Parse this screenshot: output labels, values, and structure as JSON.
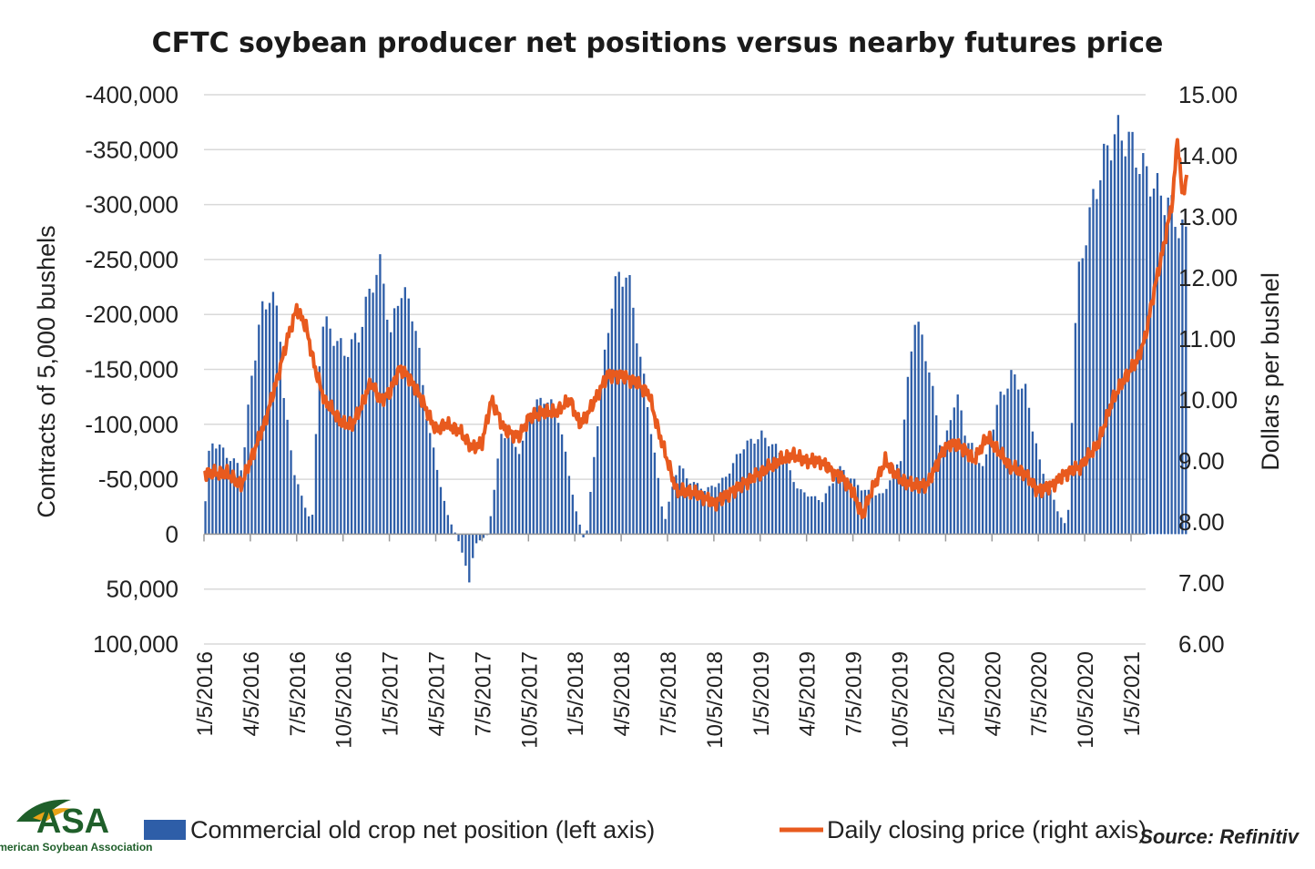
{
  "chart_data": {
    "type": "bar+line",
    "title": "CFTC soybean producer net positions versus nearby futures price",
    "ylabel_left": "Contracts of 5,000 bushels",
    "ylabel_right": "Dollars per bushel",
    "left_ticks": [
      "-400,000",
      "-350,000",
      "-300,000",
      "-250,000",
      "-200,000",
      "-150,000",
      "-100,000",
      "-50,000",
      "0",
      "50,000",
      "100,000"
    ],
    "right_ticks": [
      "15.00",
      "14.00",
      "13.00",
      "12.00",
      "11.00",
      "10.00",
      "9.00",
      "8.00",
      "7.00",
      "6.00"
    ],
    "left_ylim": [
      100000,
      -400000
    ],
    "right_ylim": [
      6,
      15
    ],
    "x_tick_labels": [
      "1/5/2016",
      "4/5/2016",
      "7/5/2016",
      "10/5/2016",
      "1/5/2017",
      "4/5/2017",
      "7/5/2017",
      "10/5/2017",
      "1/5/2018",
      "4/5/2018",
      "7/5/2018",
      "10/5/2018",
      "1/5/2019",
      "4/5/2019",
      "7/5/2019",
      "10/5/2019",
      "1/5/2020",
      "4/5/2020",
      "7/5/2020",
      "10/5/2020",
      "1/5/2021"
    ],
    "x_range_quarters": [
      0,
      21.2
    ],
    "bar_series": {
      "name": "Commercial old crop net position (left axis)",
      "color": "#2e5ea8",
      "keypoints_q_value": [
        [
          0,
          -30000
        ],
        [
          0.1,
          -85000
        ],
        [
          0.3,
          -80000
        ],
        [
          0.5,
          -70000
        ],
        [
          0.8,
          -60000
        ],
        [
          1.0,
          -145000
        ],
        [
          1.2,
          -200000
        ],
        [
          1.4,
          -220000
        ],
        [
          1.6,
          -195000
        ],
        [
          1.7,
          -120000
        ],
        [
          1.9,
          -60000
        ],
        [
          2.1,
          -30000
        ],
        [
          2.3,
          -10000
        ],
        [
          2.5,
          -195000
        ],
        [
          2.7,
          -185000
        ],
        [
          3.0,
          -165000
        ],
        [
          3.3,
          -180000
        ],
        [
          3.6,
          -230000
        ],
        [
          3.8,
          -245000
        ],
        [
          4.0,
          -180000
        ],
        [
          4.2,
          -225000
        ],
        [
          4.5,
          -200000
        ],
        [
          4.8,
          -100000
        ],
        [
          5.2,
          -20000
        ],
        [
          5.5,
          10000
        ],
        [
          5.7,
          45000
        ],
        [
          5.8,
          10000
        ],
        [
          6.1,
          0
        ],
        [
          6.4,
          -95000
        ],
        [
          6.8,
          -75000
        ],
        [
          7.0,
          -110000
        ],
        [
          7.3,
          -125000
        ],
        [
          7.6,
          -110000
        ],
        [
          8.0,
          -20000
        ],
        [
          8.2,
          10000
        ],
        [
          8.5,
          -120000
        ],
        [
          8.8,
          -225000
        ],
        [
          9.1,
          -240000
        ],
        [
          9.3,
          -185000
        ],
        [
          9.6,
          -100000
        ],
        [
          9.9,
          -10000
        ],
        [
          10.2,
          -65000
        ],
        [
          10.4,
          -50000
        ],
        [
          10.8,
          -40000
        ],
        [
          11.2,
          -50000
        ],
        [
          11.6,
          -80000
        ],
        [
          12.0,
          -90000
        ],
        [
          12.4,
          -75000
        ],
        [
          12.8,
          -40000
        ],
        [
          13.3,
          -30000
        ],
        [
          13.7,
          -60000
        ],
        [
          14.2,
          -40000
        ],
        [
          14.6,
          -35000
        ],
        [
          15.0,
          -70000
        ],
        [
          15.3,
          -200000
        ],
        [
          15.6,
          -155000
        ],
        [
          15.9,
          -70000
        ],
        [
          16.2,
          -130000
        ],
        [
          16.4,
          -90000
        ],
        [
          16.8,
          -60000
        ],
        [
          17.1,
          -120000
        ],
        [
          17.4,
          -145000
        ],
        [
          17.7,
          -130000
        ],
        [
          18.0,
          -65000
        ],
        [
          18.4,
          -20000
        ],
        [
          18.6,
          -5000
        ],
        [
          18.8,
          -225000
        ],
        [
          19.0,
          -275000
        ],
        [
          19.3,
          -330000
        ],
        [
          19.6,
          -365000
        ],
        [
          19.9,
          -360000
        ],
        [
          20.2,
          -335000
        ],
        [
          20.5,
          -315000
        ],
        [
          20.8,
          -300000
        ],
        [
          21.0,
          -280000
        ],
        [
          21.2,
          -270000
        ]
      ]
    },
    "line_series": {
      "name": "Daily closing price (right axis)",
      "color": "#e85a1e",
      "keypoints_q_value": [
        [
          0,
          8.8
        ],
        [
          0.5,
          8.8
        ],
        [
          0.8,
          8.6
        ],
        [
          1.0,
          9.0
        ],
        [
          1.3,
          9.6
        ],
        [
          1.6,
          10.4
        ],
        [
          1.8,
          11.0
        ],
        [
          2.0,
          11.5
        ],
        [
          2.2,
          11.2
        ],
        [
          2.4,
          10.5
        ],
        [
          2.6,
          10.0
        ],
        [
          2.8,
          9.8
        ],
        [
          3.0,
          9.6
        ],
        [
          3.2,
          9.6
        ],
        [
          3.4,
          9.9
        ],
        [
          3.6,
          10.3
        ],
        [
          3.8,
          10.0
        ],
        [
          4.0,
          10.1
        ],
        [
          4.2,
          10.5
        ],
        [
          4.4,
          10.4
        ],
        [
          4.7,
          10.0
        ],
        [
          5.0,
          9.5
        ],
        [
          5.2,
          9.6
        ],
        [
          5.5,
          9.5
        ],
        [
          5.8,
          9.2
        ],
        [
          6.0,
          9.3
        ],
        [
          6.2,
          10.0
        ],
        [
          6.5,
          9.5
        ],
        [
          6.8,
          9.4
        ],
        [
          7.0,
          9.7
        ],
        [
          7.3,
          9.8
        ],
        [
          7.6,
          9.8
        ],
        [
          7.9,
          10.0
        ],
        [
          8.1,
          9.6
        ],
        [
          8.3,
          9.8
        ],
        [
          8.5,
          10.1
        ],
        [
          8.7,
          10.4
        ],
        [
          9.0,
          10.4
        ],
        [
          9.3,
          10.3
        ],
        [
          9.6,
          10.1
        ],
        [
          9.8,
          9.5
        ],
        [
          10.0,
          9.0
        ],
        [
          10.2,
          8.5
        ],
        [
          10.5,
          8.5
        ],
        [
          10.8,
          8.4
        ],
        [
          11.0,
          8.3
        ],
        [
          11.4,
          8.5
        ],
        [
          11.8,
          8.7
        ],
        [
          12.0,
          8.8
        ],
        [
          12.4,
          9.0
        ],
        [
          12.7,
          9.1
        ],
        [
          13.0,
          9.0
        ],
        [
          13.3,
          9.0
        ],
        [
          13.6,
          8.8
        ],
        [
          13.8,
          8.7
        ],
        [
          14.0,
          8.5
        ],
        [
          14.2,
          8.1
        ],
        [
          14.4,
          8.5
        ],
        [
          14.7,
          9.0
        ],
        [
          15.0,
          8.7
        ],
        [
          15.3,
          8.6
        ],
        [
          15.6,
          8.6
        ],
        [
          15.9,
          9.1
        ],
        [
          16.1,
          9.3
        ],
        [
          16.4,
          9.2
        ],
        [
          16.6,
          9.0
        ],
        [
          16.9,
          9.4
        ],
        [
          17.1,
          9.2
        ],
        [
          17.4,
          8.9
        ],
        [
          17.7,
          8.8
        ],
        [
          18.0,
          8.5
        ],
        [
          18.3,
          8.6
        ],
        [
          18.6,
          8.8
        ],
        [
          18.9,
          8.9
        ],
        [
          19.1,
          9.1
        ],
        [
          19.3,
          9.3
        ],
        [
          19.6,
          10.0
        ],
        [
          19.9,
          10.4
        ],
        [
          20.1,
          10.6
        ],
        [
          20.3,
          11.0
        ],
        [
          20.5,
          11.8
        ],
        [
          20.7,
          12.5
        ],
        [
          20.9,
          13.3
        ],
        [
          21.0,
          14.3
        ],
        [
          21.1,
          13.4
        ],
        [
          21.2,
          13.6
        ]
      ]
    },
    "legend": {
      "bar_label": "Commercial old crop net position (left axis)",
      "line_label": "Daily closing price (right axis)"
    },
    "source": "Source: Refinitiv"
  },
  "logo": {
    "name": "ASA",
    "subtitle": "American Soybean Association"
  },
  "colors": {
    "bar": "#2e5ea8",
    "line": "#e85a1e",
    "grid": "#d9d9d9",
    "logo": "#1f5f2a"
  }
}
